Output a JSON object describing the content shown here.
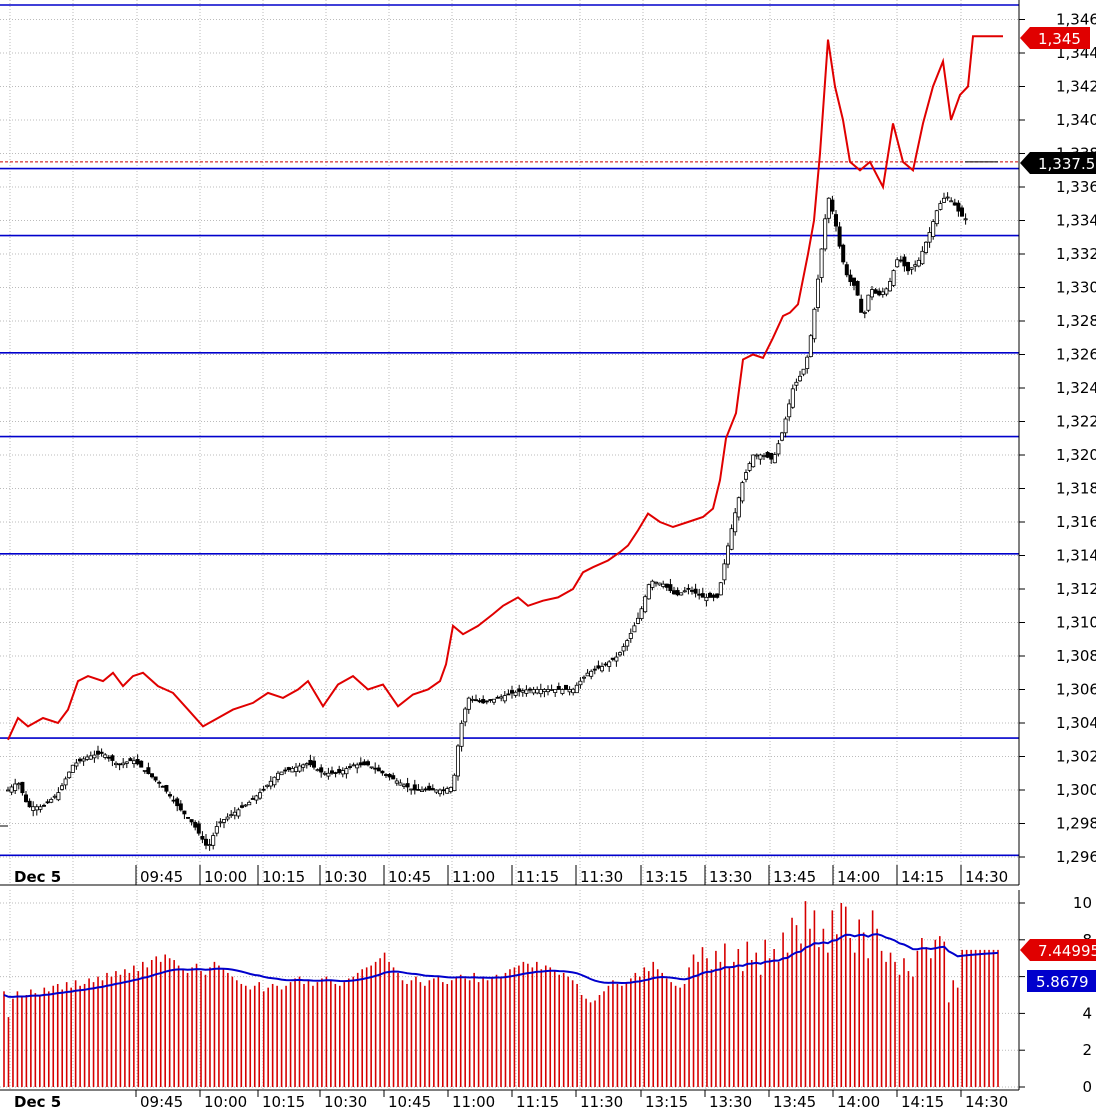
{
  "chart_data": [
    {
      "type": "candlestick+line",
      "y_axis_ticks": [
        "1,296",
        "1,298",
        "1,300",
        "1,302",
        "1,304",
        "1,306",
        "1,308",
        "1,310",
        "1,312",
        "1,314",
        "1,316",
        "1,318",
        "1,320",
        "1,322",
        "1,324",
        "1,326",
        "1,328",
        "1,330",
        "1,332",
        "1,334",
        "1,336",
        "1,338",
        "1,340",
        "1,342",
        "1,344",
        "1,346"
      ],
      "ylim": [
        1295.5,
        1346.5
      ],
      "x_axis_labels": [
        "Dec 5",
        "09:45",
        "10:00",
        "10:15",
        "10:30",
        "10:45",
        "11:00",
        "11:15",
        "11:30",
        "13:15",
        "13:30",
        "13:45",
        "14:00",
        "14:15",
        "14:30"
      ],
      "horizontal_levels": [
        1296.1,
        1303.1,
        1314.1,
        1321.1,
        1326.1,
        1333.1,
        1337.1,
        1347.0
      ],
      "dashed_level": 1337.5,
      "badges": {
        "red_line_last": "1,345",
        "dashed_level": "1,337.5"
      },
      "colors": {
        "red_line": "#e00000",
        "levels": "#0000cc",
        "candles": "#000000"
      },
      "candle_close_path": [
        [
          0,
          1300.0
        ],
        [
          10,
          1300.5
        ],
        [
          20,
          1299.0
        ],
        [
          35,
          1299.0
        ],
        [
          50,
          1299.8
        ],
        [
          65,
          1301.5
        ],
        [
          80,
          1302.0
        ],
        [
          95,
          1302.2
        ],
        [
          110,
          1301.5
        ],
        [
          125,
          1301.8
        ],
        [
          140,
          1301.0
        ],
        [
          155,
          1300.2
        ],
        [
          170,
          1299.0
        ],
        [
          185,
          1298.0
        ],
        [
          200,
          1296.5
        ],
        [
          210,
          1298.0
        ],
        [
          225,
          1298.6
        ],
        [
          240,
          1299.2
        ],
        [
          255,
          1300.0
        ],
        [
          270,
          1301.0
        ],
        [
          285,
          1301.3
        ],
        [
          300,
          1301.6
        ],
        [
          315,
          1301.0
        ],
        [
          330,
          1301.0
        ],
        [
          345,
          1301.5
        ],
        [
          360,
          1301.5
        ],
        [
          375,
          1301.0
        ],
        [
          390,
          1300.5
        ],
        [
          405,
          1300.0
        ],
        [
          420,
          1300.0
        ],
        [
          435,
          1300.0
        ],
        [
          445,
          1300.2
        ],
        [
          452,
          1303.6
        ],
        [
          460,
          1305.5
        ],
        [
          475,
          1305.2
        ],
        [
          490,
          1305.5
        ],
        [
          505,
          1305.8
        ],
        [
          520,
          1306.0
        ],
        [
          535,
          1306.0
        ],
        [
          550,
          1306.0
        ],
        [
          565,
          1306.0
        ],
        [
          580,
          1307.0
        ],
        [
          595,
          1307.4
        ],
        [
          610,
          1308.0
        ],
        [
          620,
          1309.0
        ],
        [
          632,
          1310.5
        ],
        [
          642,
          1312.5
        ],
        [
          655,
          1312.3
        ],
        [
          668,
          1311.6
        ],
        [
          680,
          1312.0
        ],
        [
          695,
          1311.5
        ],
        [
          710,
          1311.5
        ],
        [
          718,
          1314.0
        ],
        [
          725,
          1316.0
        ],
        [
          735,
          1318.5
        ],
        [
          745,
          1320.0
        ],
        [
          755,
          1320.0
        ],
        [
          765,
          1319.7
        ],
        [
          775,
          1321.5
        ],
        [
          785,
          1324.0
        ],
        [
          795,
          1325.0
        ],
        [
          800,
          1326.0
        ],
        [
          805,
          1328.0
        ],
        [
          810,
          1330.5
        ],
        [
          815,
          1333.0
        ],
        [
          820,
          1335.5
        ],
        [
          827,
          1334.0
        ],
        [
          833,
          1332.0
        ],
        [
          840,
          1330.5
        ],
        [
          848,
          1330.0
        ],
        [
          855,
          1328.0
        ],
        [
          862,
          1330.0
        ],
        [
          870,
          1329.5
        ],
        [
          880,
          1330.0
        ],
        [
          890,
          1331.8
        ],
        [
          900,
          1331.0
        ],
        [
          910,
          1331.5
        ],
        [
          920,
          1333.0
        ],
        [
          930,
          1334.8
        ],
        [
          938,
          1335.5
        ],
        [
          946,
          1335.0
        ],
        [
          953,
          1334.3
        ],
        [
          960,
          1334.0
        ]
      ],
      "red_line_path": [
        [
          0,
          1303.0
        ],
        [
          10,
          1304.3
        ],
        [
          20,
          1303.8
        ],
        [
          35,
          1304.3
        ],
        [
          50,
          1304.0
        ],
        [
          60,
          1304.8
        ],
        [
          70,
          1306.5
        ],
        [
          80,
          1306.8
        ],
        [
          95,
          1306.5
        ],
        [
          105,
          1307.0
        ],
        [
          115,
          1306.2
        ],
        [
          125,
          1306.8
        ],
        [
          135,
          1307.0
        ],
        [
          150,
          1306.2
        ],
        [
          165,
          1305.8
        ],
        [
          180,
          1304.8
        ],
        [
          195,
          1303.8
        ],
        [
          210,
          1304.3
        ],
        [
          225,
          1304.8
        ],
        [
          245,
          1305.2
        ],
        [
          260,
          1305.8
        ],
        [
          275,
          1305.5
        ],
        [
          290,
          1306.0
        ],
        [
          300,
          1306.5
        ],
        [
          315,
          1305.0
        ],
        [
          330,
          1306.3
        ],
        [
          345,
          1306.8
        ],
        [
          360,
          1306.0
        ],
        [
          375,
          1306.3
        ],
        [
          390,
          1305.0
        ],
        [
          405,
          1305.7
        ],
        [
          420,
          1306.0
        ],
        [
          432,
          1306.5
        ],
        [
          438,
          1307.5
        ],
        [
          445,
          1309.8
        ],
        [
          455,
          1309.3
        ],
        [
          470,
          1309.8
        ],
        [
          485,
          1310.5
        ],
        [
          495,
          1311.0
        ],
        [
          510,
          1311.5
        ],
        [
          520,
          1311.0
        ],
        [
          535,
          1311.3
        ],
        [
          550,
          1311.5
        ],
        [
          565,
          1312.0
        ],
        [
          575,
          1313.0
        ],
        [
          585,
          1313.3
        ],
        [
          600,
          1313.7
        ],
        [
          612,
          1314.2
        ],
        [
          620,
          1314.6
        ],
        [
          630,
          1315.5
        ],
        [
          640,
          1316.5
        ],
        [
          652,
          1316.0
        ],
        [
          665,
          1315.7
        ],
        [
          680,
          1316.0
        ],
        [
          695,
          1316.3
        ],
        [
          705,
          1316.8
        ],
        [
          712,
          1318.5
        ],
        [
          718,
          1321.0
        ],
        [
          728,
          1322.5
        ],
        [
          735,
          1325.7
        ],
        [
          745,
          1326.0
        ],
        [
          755,
          1325.8
        ],
        [
          765,
          1327.0
        ],
        [
          775,
          1328.3
        ],
        [
          782,
          1328.5
        ],
        [
          790,
          1329.0
        ],
        [
          800,
          1332.0
        ],
        [
          806,
          1334.0
        ],
        [
          812,
          1338.0
        ],
        [
          820,
          1344.8
        ],
        [
          827,
          1342.0
        ],
        [
          835,
          1340.0
        ],
        [
          842,
          1337.5
        ],
        [
          852,
          1337.0
        ],
        [
          862,
          1337.5
        ],
        [
          875,
          1336.0
        ],
        [
          885,
          1339.8
        ],
        [
          895,
          1337.5
        ],
        [
          905,
          1337.0
        ],
        [
          915,
          1339.8
        ],
        [
          925,
          1342.0
        ],
        [
          935,
          1343.5
        ],
        [
          943,
          1340.0
        ],
        [
          952,
          1341.5
        ],
        [
          960,
          1342.0
        ],
        [
          965,
          1345.0
        ],
        [
          995,
          1345.0
        ]
      ]
    },
    {
      "type": "bar+line",
      "y_axis_ticks": [
        "0",
        "2",
        "4",
        "6",
        "8",
        "10"
      ],
      "ylim": [
        0,
        10.6
      ],
      "x_axis_labels": [
        "Dec 5",
        "09:45",
        "10:00",
        "10:15",
        "10:30",
        "10:45",
        "11:00",
        "11:15",
        "11:30",
        "13:15",
        "13:30",
        "13:45",
        "14:00",
        "14:15",
        "14:30"
      ],
      "badges": {
        "bar_last": "7.44995",
        "line_last": "5.8679"
      },
      "colors": {
        "bars": "#d60000",
        "line": "#0000cc"
      },
      "bar_values": [
        5.2,
        3.8,
        4.8,
        5.2,
        4.9,
        5.0,
        5.3,
        5.1,
        5.0,
        5.4,
        5.2,
        5.5,
        5.6,
        5.3,
        5.7,
        5.4,
        5.8,
        5.5,
        5.6,
        5.9,
        5.7,
        6.0,
        5.8,
        6.2,
        6.0,
        6.3,
        6.1,
        6.4,
        6.2,
        6.6,
        6.3,
        6.8,
        6.5,
        6.9,
        7.1,
        6.8,
        7.2,
        7.0,
        6.9,
        6.6,
        6.4,
        6.2,
        6.5,
        6.7,
        6.3,
        6.1,
        6.5,
        6.8,
        6.6,
        6.4,
        6.2,
        6.0,
        5.8,
        5.6,
        5.5,
        5.3,
        5.5,
        5.7,
        5.2,
        5.4,
        5.6,
        5.5,
        5.3,
        5.5,
        5.7,
        5.9,
        6.0,
        5.6,
        5.8,
        5.5,
        5.7,
        5.9,
        6.0,
        5.8,
        5.6,
        5.5,
        5.7,
        5.9,
        6.0,
        6.2,
        6.4,
        6.5,
        6.6,
        6.8,
        7.0,
        7.3,
        6.8,
        6.5,
        6.2,
        5.8,
        5.6,
        5.8,
        6.0,
        5.7,
        5.5,
        5.8,
        5.9,
        6.0,
        5.7,
        5.6,
        5.8,
        6.0,
        6.1,
        5.9,
        5.8,
        6.2,
        5.7,
        6.0,
        5.8,
        5.9,
        6.1,
        6.0,
        6.2,
        6.4,
        6.5,
        6.6,
        6.8,
        6.7,
        6.5,
        6.8,
        6.4,
        6.6,
        6.5,
        6.3,
        6.1,
        6.2,
        6.0,
        5.8,
        5.6,
        5.0,
        4.8,
        4.6,
        4.7,
        5.0,
        5.2,
        5.5,
        5.8,
        5.6,
        5.5,
        5.7,
        5.9,
        6.2,
        6.0,
        6.5,
        6.3,
        6.8,
        6.4,
        6.2,
        5.9,
        5.7,
        5.5,
        5.4,
        5.6,
        6.5,
        7.2,
        6.8,
        7.6,
        7.0,
        6.4,
        7.4,
        6.8,
        7.8,
        6.5,
        6.8,
        7.5,
        6.3,
        7.9,
        6.9,
        7.3,
        6.1,
        8.0,
        7.0,
        7.5,
        6.8,
        8.4,
        7.3,
        9.2,
        8.8,
        7.8,
        10.1,
        8.6,
        9.6,
        7.6,
        8.6,
        7.3,
        9.6,
        8.3,
        10.0,
        9.8,
        8.1,
        7.3,
        9.1,
        8.4,
        7.0,
        9.6,
        8.6,
        7.4,
        6.8,
        7.3,
        6.8,
        6.1,
        7.0,
        6.3,
        6.0,
        7.4,
        8.1,
        7.6,
        7.0,
        8.0,
        8.2,
        7.9,
        4.6,
        5.8,
        5.4,
        7.45,
        7.45,
        7.45,
        7.45,
        7.45,
        7.45,
        7.45,
        7.45,
        7.45
      ]
    }
  ]
}
